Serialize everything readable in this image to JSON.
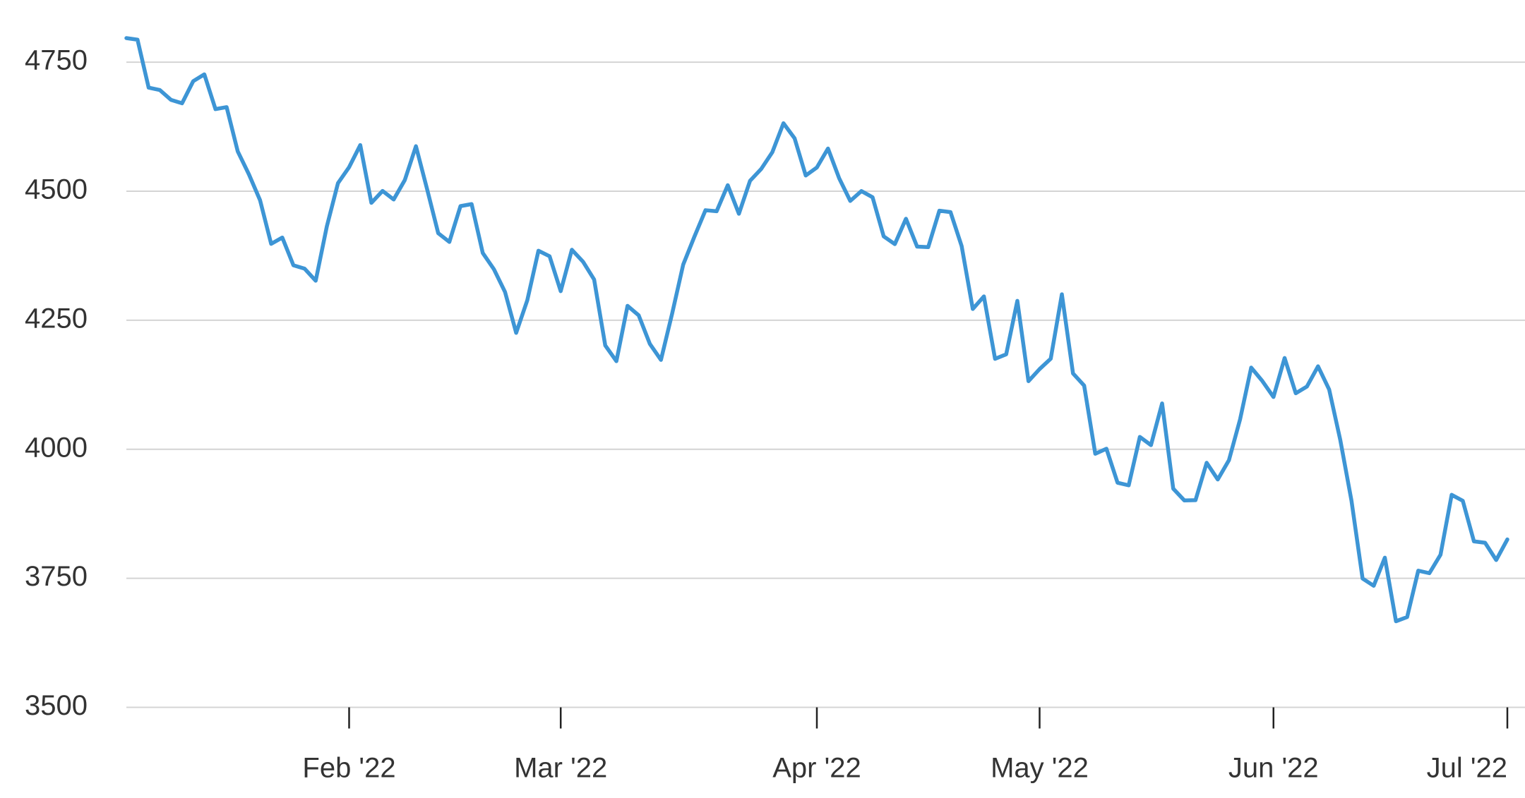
{
  "chart_data": {
    "type": "line",
    "color": "#3d95d5",
    "grid": true,
    "ylim": [
      3500,
      4800
    ],
    "yticks": [
      3500,
      3750,
      4000,
      4250,
      4500,
      4750
    ],
    "xlim": [
      0,
      124
    ],
    "xticks": [
      {
        "value": 20,
        "label": "Feb '22"
      },
      {
        "value": 39,
        "label": "Mar '22"
      },
      {
        "value": 62,
        "label": "Apr '22"
      },
      {
        "value": 82,
        "label": "May '22"
      },
      {
        "value": 103,
        "label": "Jun '22"
      },
      {
        "value": 124,
        "label": "Jul '22"
      }
    ],
    "values": [
      4796.56,
      4793.54,
      4700.58,
      4696.05,
      4677.03,
      4670.29,
      4713.07,
      4726.35,
      4659.03,
      4662.85,
      4577.11,
      4532.76,
      4482.73,
      4397.94,
      4410.13,
      4356.45,
      4349.93,
      4326.51,
      4431.85,
      4515.55,
      4546.54,
      4589.38,
      4477.44,
      4500.53,
      4483.87,
      4521.54,
      4587.18,
      4504.08,
      4418.64,
      4401.67,
      4471.07,
      4475.01,
      4380.26,
      4348.87,
      4304.76,
      4225.5,
      4288.7,
      4384.65,
      4373.94,
      4306.26,
      4386.54,
      4363.49,
      4328.87,
      4201.09,
      4170.7,
      4277.88,
      4259.52,
      4204.31,
      4173.11,
      4262.45,
      4357.86,
      4411.67,
      4463.12,
      4461.18,
      4511.61,
      4456.24,
      4520.16,
      4543.06,
      4575.52,
      4631.6,
      4602.45,
      4530.41,
      4545.86,
      4582.64,
      4525.12,
      4481.15,
      4500.21,
      4488.28,
      4412.53,
      4397.45,
      4446.59,
      4392.59,
      4391.69,
      4462.21,
      4459.45,
      4393.66,
      4271.78,
      4296.12,
      4175.2,
      4183.96,
      4287.5,
      4131.93,
      4155.38,
      4175.48,
      4300.17,
      4146.87,
      4123.34,
      3991.24,
      4001.05,
      3935.18,
      3930.08,
      4023.89,
      4008.01,
      4088.85,
      3923.68,
      3900.79,
      3901.36,
      3973.75,
      3941.48,
      3978.73,
      4057.84,
      4158.24,
      4132.15,
      4101.23,
      4176.82,
      4108.54,
      4121.43,
      4160.68,
      4115.77,
      4017.82,
      3900.86,
      3749.63,
      3735.48,
      3789.99,
      3666.77,
      3674.84,
      3764.79,
      3759.89,
      3795.73,
      3911.74,
      3900.11,
      3821.55,
      3818.83,
      3785.38,
      3825.33
    ]
  }
}
